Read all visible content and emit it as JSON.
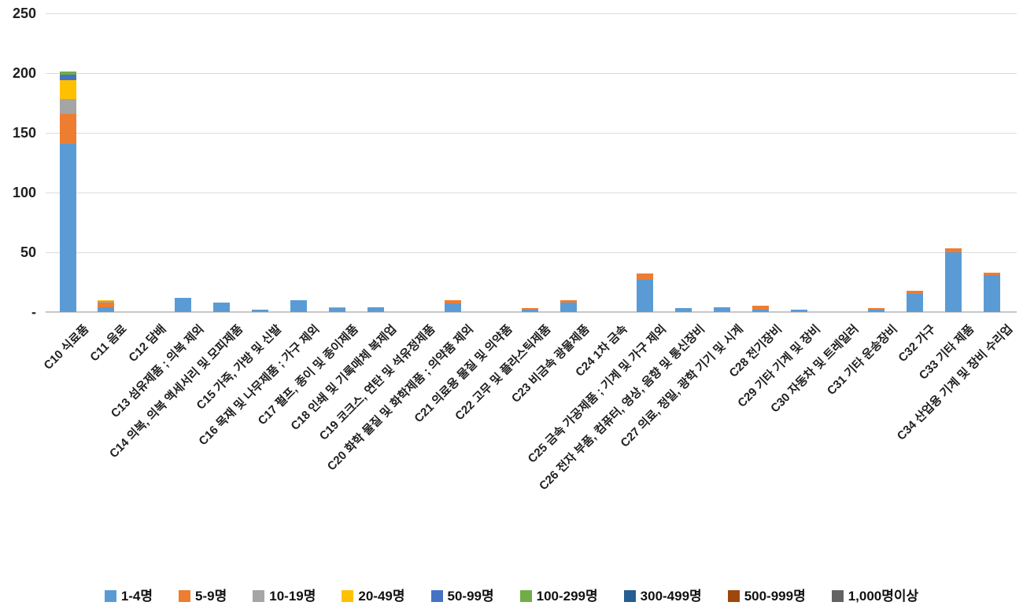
{
  "chart_data": {
    "type": "bar",
    "stacked": true,
    "title": "",
    "xlabel": "",
    "ylabel": "",
    "legend_position": "bottom",
    "gridlines": "horizontal",
    "y_axis": {
      "min": 0,
      "max": 250,
      "tick_interval": 50,
      "ticks": [
        {
          "value": 0,
          "label": "-"
        },
        {
          "value": 50,
          "label": "50"
        },
        {
          "value": 100,
          "label": "100"
        },
        {
          "value": 150,
          "label": "150"
        },
        {
          "value": 200,
          "label": "200"
        },
        {
          "value": 250,
          "label": "250"
        }
      ]
    },
    "categories": [
      "C10 식료품",
      "C11 음료",
      "C12 담배",
      "C13 섬유제품 ; 의복 제외",
      "C14 의복, 의복 액세서리 및 모피제품",
      "C15 가죽, 가방 및 신발",
      "C16 목재 및 나무제품 ; 가구 제외",
      "C17 펄프, 종이 및 종이제품",
      "C18 인쇄 및 기록매체 복제업",
      "C19 코크스, 연탄 및 석유정제품",
      "C20 화학 물질 및 화학제품 ; 의약품 제외",
      "C21 의료용 물질 및 의약품",
      "C22 고무 및 플라스틱제품",
      "C23 비금속 광물제품",
      "C24 1차 금속",
      "C25 금속 가공제품 ; 기계 및 가구 제외",
      "C26 전자 부품, 컴퓨터, 영상, 음향 및 통신장비",
      "C27 의료, 정밀, 광학 기기 및 시계",
      "C28 전기장비",
      "C29 기타 기계 및 장비",
      "C30 자동차 및 트레일러",
      "C31 기타 운송장비",
      "C32 가구",
      "C33 기타 제품",
      "C34 산업용 기계 및 장비 수리업"
    ],
    "series": [
      {
        "name": "1-4명",
        "color": "#5B9BD5",
        "values": [
          141,
          4,
          0,
          12,
          8,
          2,
          10,
          3,
          4,
          0,
          7,
          0,
          2,
          8,
          0,
          27,
          3,
          4,
          2,
          2,
          0,
          2,
          15,
          50,
          31
        ]
      },
      {
        "name": "5-9명",
        "color": "#ED7D31",
        "values": [
          25,
          4,
          0,
          0,
          0,
          0,
          0,
          0,
          0,
          0,
          3,
          0,
          1,
          2,
          0,
          5,
          0,
          0,
          3,
          0,
          0,
          1,
          3,
          3,
          2
        ]
      },
      {
        "name": "10-19명",
        "color": "#A5A5A5",
        "values": [
          12,
          1,
          0,
          0,
          0,
          0,
          0,
          1,
          0,
          0,
          0,
          0,
          0,
          0,
          0,
          0,
          0,
          0,
          0,
          0,
          0,
          0,
          0,
          0,
          0
        ]
      },
      {
        "name": "20-49명",
        "color": "#FFC000",
        "values": [
          16,
          1,
          0,
          0,
          0,
          0,
          0,
          0,
          0,
          0,
          0,
          0,
          0,
          0,
          0,
          0,
          0,
          0,
          0,
          0,
          0,
          0,
          0,
          0,
          0
        ]
      },
      {
        "name": "50-99명",
        "color": "#4472C4",
        "values": [
          5,
          0,
          0,
          0,
          0,
          0,
          0,
          0,
          0,
          0,
          0,
          0,
          0,
          0,
          0,
          0,
          0,
          0,
          0,
          0,
          0,
          0,
          0,
          0,
          0
        ]
      },
      {
        "name": "100-299명",
        "color": "#70AD47",
        "values": [
          2,
          0,
          0,
          0,
          0,
          0,
          0,
          0,
          0,
          0,
          0,
          0,
          0,
          0,
          0,
          0,
          0,
          0,
          0,
          0,
          0,
          0,
          0,
          0,
          0
        ]
      },
      {
        "name": "300-499명",
        "color": "#255E91",
        "values": [
          0,
          0,
          0,
          0,
          0,
          0,
          0,
          0,
          0,
          0,
          0,
          0,
          0,
          0,
          0,
          0,
          0,
          0,
          0,
          0,
          0,
          0,
          0,
          0,
          0
        ]
      },
      {
        "name": "500-999명",
        "color": "#9E480E",
        "values": [
          0,
          0,
          0,
          0,
          0,
          0,
          0,
          0,
          0,
          0,
          0,
          0,
          0,
          0,
          0,
          0,
          0,
          0,
          0,
          0,
          0,
          0,
          0,
          0,
          0
        ]
      },
      {
        "name": "1,000명이상",
        "color": "#636363",
        "values": [
          0,
          0,
          0,
          0,
          0,
          0,
          0,
          0,
          0,
          0,
          0,
          0,
          0,
          0,
          0,
          0,
          0,
          0,
          0,
          0,
          0,
          0,
          0,
          0,
          0
        ]
      }
    ]
  }
}
